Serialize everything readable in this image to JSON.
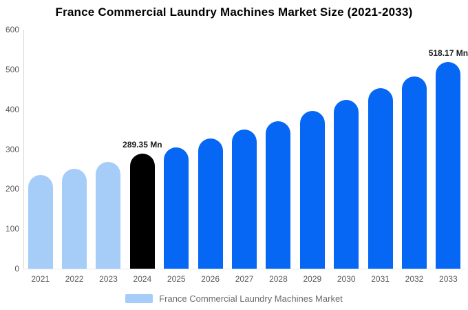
{
  "title": "France Commercial Laundry Machines Market Size (2021-2033)",
  "legend": {
    "label": "France Commercial Laundry Machines Market"
  },
  "colors": {
    "historical": "#a6cdf8",
    "base_year": "#000000",
    "forecast": "#0667f5",
    "axis_text": "#595959",
    "axis_line": "#d9d9d9",
    "title_text": "#000000",
    "legend_text": "#6b6b6b"
  },
  "y_axis": {
    "ticks": [
      0,
      100,
      200,
      300,
      400,
      500,
      600
    ],
    "min": 0,
    "max": 600
  },
  "chart_data": {
    "type": "bar",
    "title": "France Commercial Laundry Machines Market Size (2021-2033)",
    "xlabel": "",
    "ylabel": "",
    "ylim": [
      0,
      600
    ],
    "grid": false,
    "legend_position": "bottom",
    "categories": [
      "2021",
      "2022",
      "2023",
      "2024",
      "2025",
      "2026",
      "2027",
      "2028",
      "2029",
      "2030",
      "2031",
      "2032",
      "2033"
    ],
    "values": [
      235,
      251,
      268,
      289.35,
      304,
      327,
      349,
      370,
      396,
      423,
      453,
      483,
      518.17
    ],
    "bar_color_keys": [
      "historical",
      "historical",
      "historical",
      "base_year",
      "forecast",
      "forecast",
      "forecast",
      "forecast",
      "forecast",
      "forecast",
      "forecast",
      "forecast",
      "forecast"
    ],
    "annotations": [
      {
        "category": "2024",
        "text": "289.35 Mn"
      },
      {
        "category": "2033",
        "text": "518.17 Mn"
      }
    ],
    "units": "Mn"
  }
}
